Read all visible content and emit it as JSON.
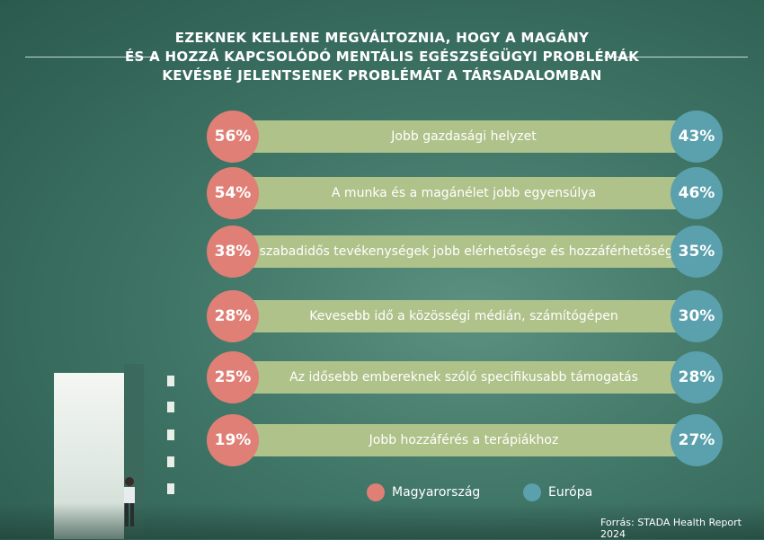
{
  "title_lines": [
    "EZEKNEK KELLENE MEGVÁLTOZNIA, HOGY A MAGÁNY",
    "ÉS A HOZZÁ KAPCSOLÓDÓ MENTÁLIS EGÉSZSÉGÜGYI PROBLÉMÁK",
    "KEVÉSBÉ JELENTSENEK PROBLÉMÁT A TÁRSADALOMBAN"
  ],
  "colors": {
    "hu": "#e07f76",
    "eu": "#5aa0ad",
    "bar": "#afc28a"
  },
  "chart_data": {
    "type": "table",
    "categories": [
      "Jobb gazdasági helyzet",
      "A munka és a magánélet jobb egyensúlya",
      "A szabadidős tevékenységek jobb elérhetősége és hozzáférhetősége",
      "Kevesebb idő a közösségi médián, számítógépen",
      "Az idősebb embereknek szóló specifikusabb támogatás",
      "Jobb hozzáférés a terápiákhoz"
    ],
    "series": [
      {
        "name": "Magyarország",
        "values": [
          "56%",
          "54%",
          "38%",
          "28%",
          "25%",
          "19%"
        ]
      },
      {
        "name": "Európa",
        "values": [
          "43%",
          "46%",
          "35%",
          "30%",
          "28%",
          "27%"
        ]
      }
    ]
  },
  "legend": [
    "Magyarország",
    "Európa"
  ],
  "source": "Forrás: STADA Health Report 2024"
}
